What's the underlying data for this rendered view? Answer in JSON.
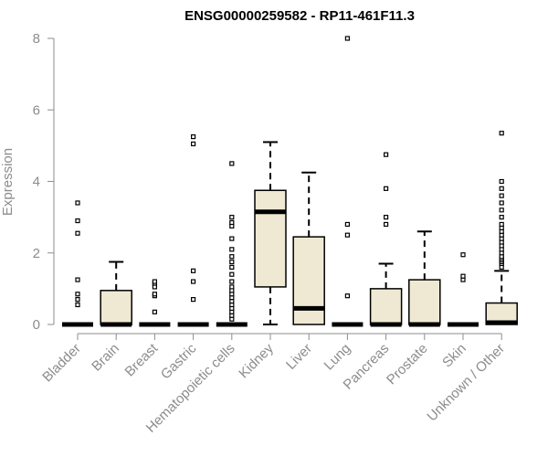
{
  "chart_data": {
    "type": "box",
    "title": "ENSG00000259582 - RP11-461F11.3",
    "xlabel": "",
    "ylabel": "Expression",
    "ylim": [
      0,
      8
    ],
    "yticks": [
      0,
      2,
      4,
      6,
      8
    ],
    "box_fill": "#efe9d3",
    "box_stroke": "#000000",
    "categories": [
      "Bladder",
      "Brain",
      "Breast",
      "Gastric",
      "Hematopoietic cells",
      "Kidney",
      "Liver",
      "Lung",
      "Pancreas",
      "Prostate",
      "Skin",
      "Unknown / Other"
    ],
    "boxes": [
      {
        "q1": 0,
        "median": 0,
        "q3": 0,
        "whisker_low": 0,
        "whisker_high": 0,
        "outliers": [
          0.55,
          0.7,
          0.85,
          1.25,
          2.55,
          2.9,
          3.4
        ]
      },
      {
        "q1": 0,
        "median": 0,
        "q3": 0.95,
        "whisker_low": 0,
        "whisker_high": 1.75,
        "outliers": []
      },
      {
        "q1": 0,
        "median": 0,
        "q3": 0,
        "whisker_low": 0,
        "whisker_high": 0,
        "outliers": [
          0.35,
          0.8,
          0.85,
          1.05,
          1.15,
          1.2
        ]
      },
      {
        "q1": 0,
        "median": 0,
        "q3": 0,
        "whisker_low": 0,
        "whisker_high": 0,
        "outliers": [
          0.7,
          1.2,
          1.5,
          5.05,
          5.25
        ]
      },
      {
        "q1": 0,
        "median": 0,
        "q3": 0,
        "whisker_low": 0,
        "whisker_high": 0,
        "outliers": [
          0.15,
          0.25,
          0.35,
          0.45,
          0.55,
          0.65,
          0.75,
          0.85,
          0.95,
          1.05,
          1.2,
          1.4,
          1.6,
          1.75,
          1.9,
          2.1,
          2.4,
          2.75,
          2.85,
          3.0,
          4.5
        ]
      },
      {
        "q1": 1.05,
        "median": 3.15,
        "q3": 3.75,
        "whisker_low": 0,
        "whisker_high": 5.1,
        "outliers": []
      },
      {
        "q1": 0,
        "median": 0.45,
        "q3": 2.45,
        "whisker_low": 0,
        "whisker_high": 4.25,
        "outliers": []
      },
      {
        "q1": 0,
        "median": 0,
        "q3": 0,
        "whisker_low": 0,
        "whisker_high": 0,
        "outliers": [
          0.8,
          2.5,
          2.8,
          8.0
        ]
      },
      {
        "q1": 0,
        "median": 0,
        "q3": 1.0,
        "whisker_low": 0,
        "whisker_high": 1.7,
        "outliers": [
          2.8,
          3.0,
          3.8,
          4.75
        ]
      },
      {
        "q1": 0,
        "median": 0,
        "q3": 1.25,
        "whisker_low": 0,
        "whisker_high": 2.6,
        "outliers": []
      },
      {
        "q1": 0,
        "median": 0,
        "q3": 0,
        "whisker_low": 0,
        "whisker_high": 0,
        "outliers": [
          1.25,
          1.35,
          1.95
        ]
      },
      {
        "q1": 0,
        "median": 0.05,
        "q3": 0.6,
        "whisker_low": 0,
        "whisker_high": 1.5,
        "outliers": [
          1.6,
          1.7,
          1.75,
          1.8,
          1.85,
          1.9,
          2.0,
          2.1,
          2.2,
          2.3,
          2.4,
          2.5,
          2.6,
          2.7,
          2.8,
          3.0,
          3.2,
          3.4,
          3.6,
          3.8,
          4.0,
          5.35
        ]
      }
    ]
  }
}
